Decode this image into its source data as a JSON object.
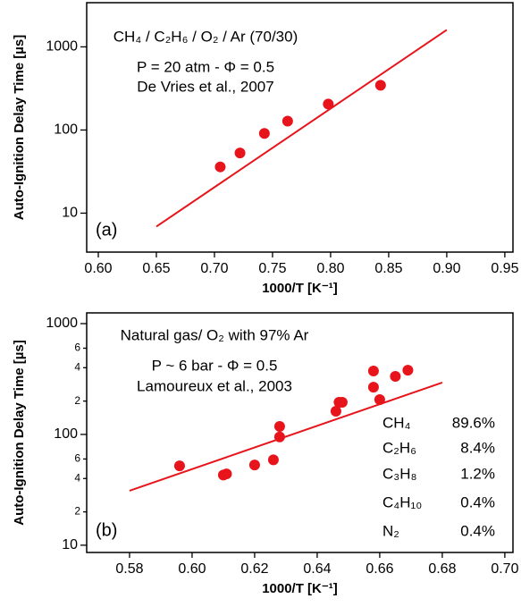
{
  "chart_data": [
    {
      "type": "scatter",
      "panel_label": "(a)",
      "annotations": [
        "CH₄ / C₂H₆ / O₂ / Ar (70/30)",
        "P = 20 atm - Φ = 0.5",
        "De Vries et al., 2007"
      ],
      "x_label": "1000/T [K⁻¹]",
      "y_label": "Auto-Ignition Delay Time [µs]",
      "x": [
        0.705,
        0.722,
        0.743,
        0.763,
        0.798,
        0.843
      ],
      "values": [
        36,
        53,
        91,
        128,
        205,
        345
      ],
      "fit": {
        "x": [
          0.65,
          0.9
        ],
        "values": [
          6.9,
          1600
        ]
      },
      "color": "#e8141b",
      "log_y": true,
      "xlim": [
        0.59,
        0.957
      ],
      "ylim": [
        3.4,
        3400
      ],
      "xticks": [
        {
          "value": 0.6,
          "label": "0.60"
        },
        {
          "value": 0.65,
          "label": "0.65"
        },
        {
          "value": 0.7,
          "label": "0.70"
        },
        {
          "value": 0.75,
          "label": "0.75"
        },
        {
          "value": 0.8,
          "label": "0.80"
        },
        {
          "value": 0.85,
          "label": "0.85"
        },
        {
          "value": 0.9,
          "label": "0.90"
        },
        {
          "value": 0.95,
          "label": "0.95"
        }
      ],
      "yticks": [
        10,
        100,
        1000
      ]
    },
    {
      "type": "scatter",
      "panel_label": "(b)",
      "annotations": [
        "Natural gas/ O₂ with 97% Ar",
        "P ~ 6 bar - Φ = 0.5",
        "Lamoureux et al., 2003"
      ],
      "composition": [
        [
          "CH₄",
          "89.6%"
        ],
        [
          "C₂H₆",
          "8.4%"
        ],
        [
          "C₃H₈",
          "1.2%"
        ],
        [
          "C₄H₁₀",
          "0.4%"
        ],
        [
          "N₂",
          "0.4%"
        ]
      ],
      "x_label": "1000/T [K⁻¹]",
      "y_label": "Auto-Ignition Delay Time [µs]",
      "x": [
        0.596,
        0.611,
        0.61,
        0.62,
        0.626,
        0.628,
        0.628,
        0.646,
        0.647,
        0.648,
        0.658,
        0.658,
        0.66,
        0.665,
        0.669
      ],
      "values": [
        52,
        44,
        43,
        53,
        59,
        118,
        95,
        162,
        195,
        195,
        374,
        267,
        206,
        334,
        380
      ],
      "fit": {
        "x": [
          0.58,
          0.68
        ],
        "values": [
          31,
          294
        ]
      },
      "color": "#e8141b",
      "log_y": true,
      "xlim": [
        0.5663,
        0.7026
      ],
      "ylim": [
        8.6,
        1250
      ],
      "xticks": [
        0.58,
        {
          "value": 0.6,
          "label": "0.60"
        },
        0.62,
        0.64,
        0.66,
        0.68,
        {
          "value": 0.7,
          "label": "0.70"
        }
      ],
      "yticks": [
        10,
        {
          "value": 20,
          "label": "2"
        },
        {
          "value": 40,
          "label": "4"
        },
        {
          "value": 60,
          "label": "6"
        },
        100,
        {
          "value": 200,
          "label": "2"
        },
        {
          "value": 400,
          "label": "4"
        },
        {
          "value": 600,
          "label": "6"
        },
        1000
      ]
    }
  ]
}
